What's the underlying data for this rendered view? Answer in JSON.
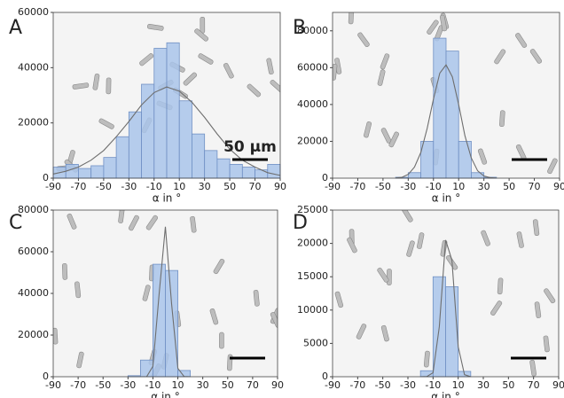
{
  "chart_data": [
    {
      "type": "histogram",
      "panel_label": "A",
      "x_label": "α in °",
      "scale_bar_label": "50 µm",
      "bins": [
        -90,
        -80,
        -70,
        -60,
        -50,
        -40,
        -30,
        -20,
        -10,
        0,
        10,
        20,
        30,
        40,
        50,
        60,
        70,
        80,
        90
      ],
      "counts": [
        4000,
        5000,
        3500,
        4500,
        7500,
        15000,
        24000,
        34000,
        47000,
        49000,
        28000,
        16000,
        10000,
        7000,
        5000,
        4000,
        3000,
        5000
      ],
      "color": "#a9c4ea",
      "edge_color": "#7090c4",
      "fit": {
        "x": [
          -90,
          -80,
          -70,
          -60,
          -50,
          -40,
          -30,
          -20,
          -10,
          0,
          10,
          20,
          30,
          40,
          50,
          60,
          70,
          80,
          90
        ],
        "values": [
          1500,
          2500,
          4000,
          6500,
          10000,
          15000,
          20500,
          26500,
          31000,
          33000,
          31500,
          27500,
          22000,
          16000,
          10500,
          6500,
          4000,
          2000,
          1000
        ],
        "color": "#6e6e6e"
      },
      "xlim": [
        -90,
        90
      ],
      "xticks": [
        -90,
        -70,
        -50,
        -30,
        -10,
        10,
        30,
        50,
        70,
        90
      ],
      "ylim": [
        0,
        60000
      ],
      "yticks": [
        0,
        20000,
        40000,
        60000
      ]
    },
    {
      "type": "histogram",
      "panel_label": "B",
      "x_label": "α in °",
      "bins": [
        -90,
        -80,
        -70,
        -60,
        -50,
        -40,
        -30,
        -20,
        -10,
        0,
        10,
        20,
        30,
        40,
        50,
        60,
        70,
        80,
        90
      ],
      "counts": [
        0,
        0,
        0,
        0,
        0,
        500,
        3000,
        20000,
        76000,
        69000,
        20000,
        3000,
        500,
        0,
        0,
        0,
        0,
        0
      ],
      "color": "#a9c4ea",
      "edge_color": "#7090c4",
      "fit": {
        "x": [
          -40,
          -35,
          -30,
          -25,
          -20,
          -15,
          -10,
          -5,
          0,
          5,
          10,
          15,
          20,
          25,
          30,
          35,
          40
        ],
        "values": [
          100,
          500,
          2000,
          6000,
          14000,
          27000,
          43000,
          57000,
          61500,
          55000,
          40000,
          23000,
          11000,
          4000,
          1200,
          300,
          50
        ],
        "color": "#6e6e6e"
      },
      "xlim": [
        -90,
        90
      ],
      "xticks": [
        -90,
        -70,
        -50,
        -30,
        -10,
        10,
        30,
        50,
        70,
        90
      ],
      "ylim": [
        0,
        90000
      ],
      "yticks": [
        0,
        20000,
        40000,
        60000,
        80000
      ]
    },
    {
      "type": "histogram",
      "panel_label": "C",
      "x_label": "α in °",
      "bins": [
        -90,
        -80,
        -70,
        -60,
        -50,
        -40,
        -30,
        -20,
        -10,
        0,
        10,
        20,
        30,
        40,
        50,
        60,
        70,
        80,
        90
      ],
      "counts": [
        0,
        0,
        0,
        0,
        0,
        0,
        500,
        8000,
        54000,
        51000,
        3000,
        0,
        0,
        0,
        0,
        0,
        0,
        0
      ],
      "color": "#a9c4ea",
      "edge_color": "#7090c4",
      "fit": {
        "x": [
          -20,
          -15,
          -10,
          -5,
          0,
          5,
          10,
          15,
          20
        ],
        "values": [
          10,
          60,
          5000,
          40000,
          72000,
          35000,
          4000,
          100,
          0
        ],
        "color": "#6e6e6e"
      },
      "xlim": [
        -90,
        90
      ],
      "xticks": [
        -90,
        -70,
        -50,
        -30,
        -10,
        10,
        30,
        50,
        70,
        90
      ],
      "ylim": [
        0,
        80000
      ],
      "yticks": [
        0,
        20000,
        40000,
        60000,
        80000
      ]
    },
    {
      "type": "histogram",
      "panel_label": "D",
      "x_label": "α in °",
      "bins": [
        -90,
        -80,
        -70,
        -60,
        -50,
        -40,
        -30,
        -20,
        -10,
        0,
        10,
        20,
        30,
        40,
        50,
        60,
        70,
        80,
        90
      ],
      "counts": [
        0,
        0,
        0,
        0,
        0,
        0,
        0,
        900,
        15000,
        13500,
        800,
        0,
        0,
        0,
        0,
        0,
        0,
        0
      ],
      "color": "#a9c4ea",
      "edge_color": "#7090c4",
      "fit": {
        "x": [
          -20,
          -15,
          -10,
          -5,
          0,
          5,
          10,
          15,
          20
        ],
        "values": [
          0,
          20,
          600,
          7500,
          20500,
          17500,
          4500,
          300,
          0
        ],
        "color": "#6e6e6e"
      },
      "xlim": [
        -90,
        90
      ],
      "xticks": [
        -90,
        -70,
        -50,
        -30,
        -10,
        10,
        30,
        50,
        70,
        90
      ],
      "ylim": [
        0,
        25000
      ],
      "yticks": [
        0,
        5000,
        10000,
        15000,
        20000,
        25000
      ]
    }
  ]
}
